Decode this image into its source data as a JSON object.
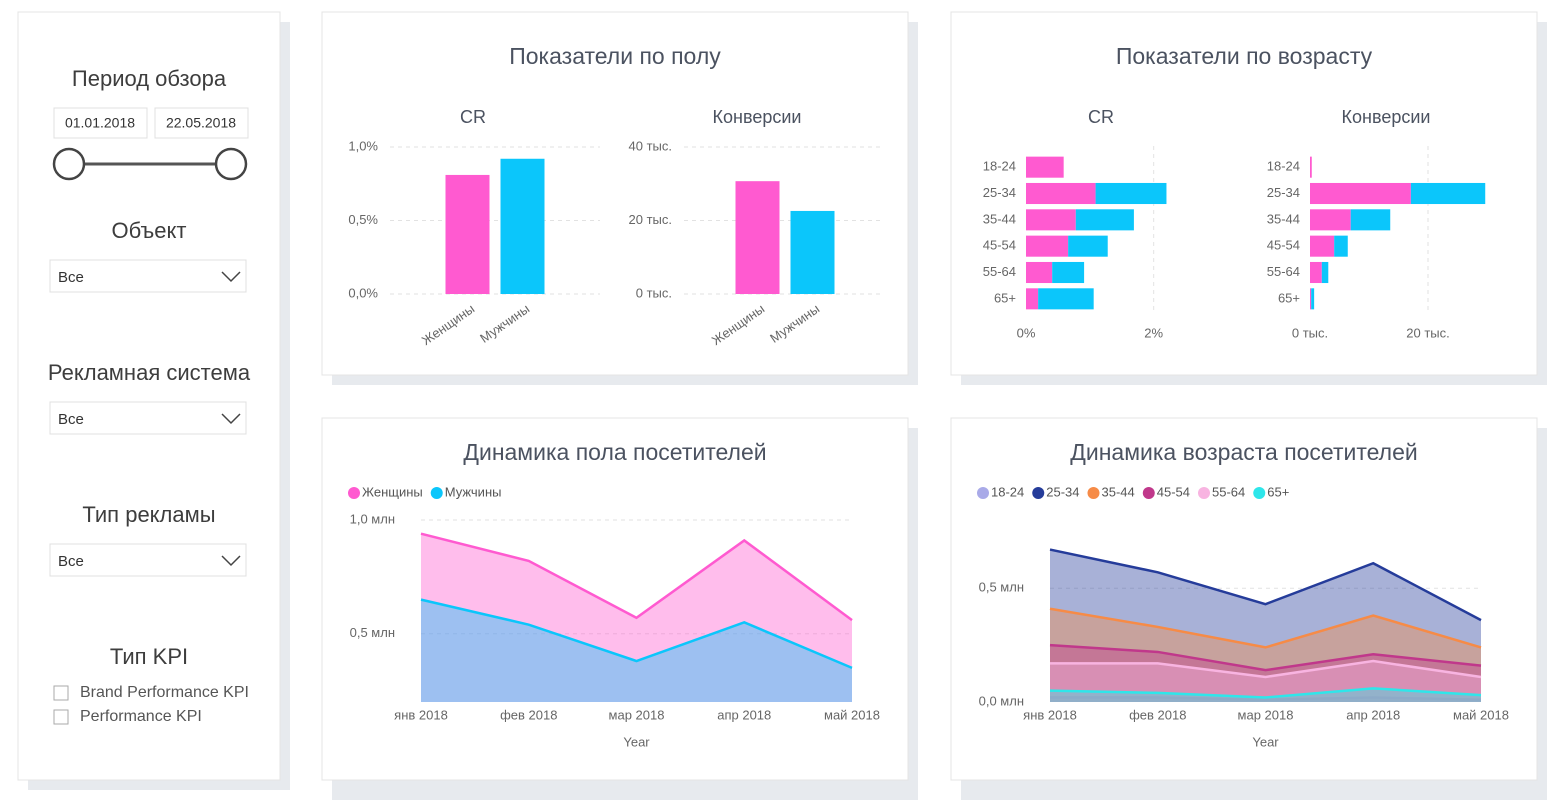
{
  "filters": {
    "period": {
      "title": "Период обзора",
      "start": "01.01.2018",
      "end": "22.05.2018"
    },
    "object": {
      "title": "Объект",
      "value": "Все"
    },
    "ad_system": {
      "title": "Рекламная система",
      "value": "Все"
    },
    "ad_type": {
      "title": "Тип рекламы",
      "value": "Все"
    },
    "kpi": {
      "title": "Тип KPI",
      "options": [
        "Brand Performance KPI",
        "Performance KPI"
      ]
    }
  },
  "panels": [
    {
      "title": "Показатели по полу"
    },
    {
      "title": "Показатели по возрасту"
    }
  ],
  "chart_data": [
    {
      "type": "bar",
      "title": "CR",
      "categories": [
        "Женщины",
        "Мужчины"
      ],
      "values": [
        0.81,
        0.92
      ],
      "colors": [
        "#ff5ad0",
        "#0bc6fb"
      ],
      "ylim": [
        0,
        1.0
      ],
      "yticks": [
        {
          "value": 0,
          "label": "0,0%"
        },
        {
          "value": 0.5,
          "label": "0,5%"
        },
        {
          "value": 1.0,
          "label": "1,0%"
        }
      ],
      "grid": true
    },
    {
      "type": "bar",
      "title": "Конверсии",
      "categories": [
        "Женщины",
        "Мужчины"
      ],
      "values": [
        30700,
        22600
      ],
      "colors": [
        "#ff5ad0",
        "#0bc6fb"
      ],
      "ylim": [
        0,
        40000
      ],
      "yticks": [
        {
          "value": 0,
          "label": "0 тыс."
        },
        {
          "value": 20000,
          "label": "20 тыс."
        },
        {
          "value": 40000,
          "label": "40 тыс."
        }
      ],
      "grid": true
    },
    {
      "type": "barh",
      "title": "CR",
      "categories": [
        "18-24",
        "25-34",
        "35-44",
        "45-54",
        "55-64",
        "65+"
      ],
      "series": [
        {
          "color": "#ff5ad0",
          "values": [
            0.59,
            1.09,
            0.78,
            0.66,
            0.41,
            0.19
          ]
        },
        {
          "color": "#0bc6fb",
          "values": [
            0,
            1.11,
            0.91,
            0.62,
            0.5,
            0.87
          ]
        }
      ],
      "xlim": [
        0,
        2.6
      ],
      "xticks": [
        {
          "value": 0,
          "label": "0%"
        },
        {
          "value": 2,
          "label": "2%"
        }
      ],
      "grid": true
    },
    {
      "type": "barh",
      "title": "Конверсии",
      "categories": [
        "18-24",
        "25-34",
        "35-44",
        "45-54",
        "55-64",
        "65+"
      ],
      "series": [
        {
          "color": "#ff5ad0",
          "values": [
            300,
            17100,
            6900,
            4100,
            2000,
            200
          ]
        },
        {
          "color": "#0bc6fb",
          "values": [
            0,
            12600,
            6700,
            2300,
            1100,
            500
          ]
        }
      ],
      "xlim": [
        0,
        30000
      ],
      "xticks": [
        {
          "value": 0,
          "label": "0 тыс."
        },
        {
          "value": 20000,
          "label": "20 тыс."
        }
      ],
      "grid": true
    },
    {
      "type": "area",
      "title": "Динамика пола посетителей",
      "x_label": "Year",
      "categories": [
        "янв 2018",
        "фев 2018",
        "мар 2018",
        "апр 2018",
        "май 2018"
      ],
      "series": [
        {
          "name": "Женщины",
          "color": "#ff5ad0",
          "values": [
            0.94,
            0.82,
            0.57,
            0.91,
            0.56
          ]
        },
        {
          "name": "Мужчины",
          "color": "#0bc6fb",
          "values": [
            0.65,
            0.54,
            0.38,
            0.55,
            0.35
          ]
        }
      ],
      "ylim": [
        0.2,
        1.0
      ],
      "yticks": [
        {
          "value": 0.5,
          "label": "0,5 млн"
        },
        {
          "value": 1.0,
          "label": "1,0 млн"
        }
      ],
      "grid": true
    },
    {
      "type": "area",
      "title": "Динамика возраста посетителей",
      "x_label": "Year",
      "categories": [
        "янв 2018",
        "фев 2018",
        "мар 2018",
        "апр 2018",
        "май 2018"
      ],
      "series": [
        {
          "name": "18-24",
          "color": "#a9aae8",
          "values": [
            0.02,
            0.02,
            0.01,
            0.02,
            0.01
          ]
        },
        {
          "name": "25-34",
          "color": "#253c9a",
          "values": [
            0.67,
            0.57,
            0.43,
            0.61,
            0.36
          ]
        },
        {
          "name": "35-44",
          "color": "#f68b47",
          "values": [
            0.41,
            0.33,
            0.24,
            0.38,
            0.24
          ]
        },
        {
          "name": "45-54",
          "color": "#c0388b",
          "values": [
            0.25,
            0.22,
            0.14,
            0.21,
            0.16
          ]
        },
        {
          "name": "55-64",
          "color": "#f8b4e1",
          "values": [
            0.17,
            0.17,
            0.11,
            0.18,
            0.11
          ]
        },
        {
          "name": "65+",
          "color": "#2ee6ea",
          "values": [
            0.05,
            0.04,
            0.02,
            0.06,
            0.03
          ]
        }
      ],
      "ylim": [
        0,
        0.8
      ],
      "yticks": [
        {
          "value": 0,
          "label": "0,0 млн"
        },
        {
          "value": 0.5,
          "label": "0,5 млн"
        }
      ],
      "grid": true
    }
  ]
}
